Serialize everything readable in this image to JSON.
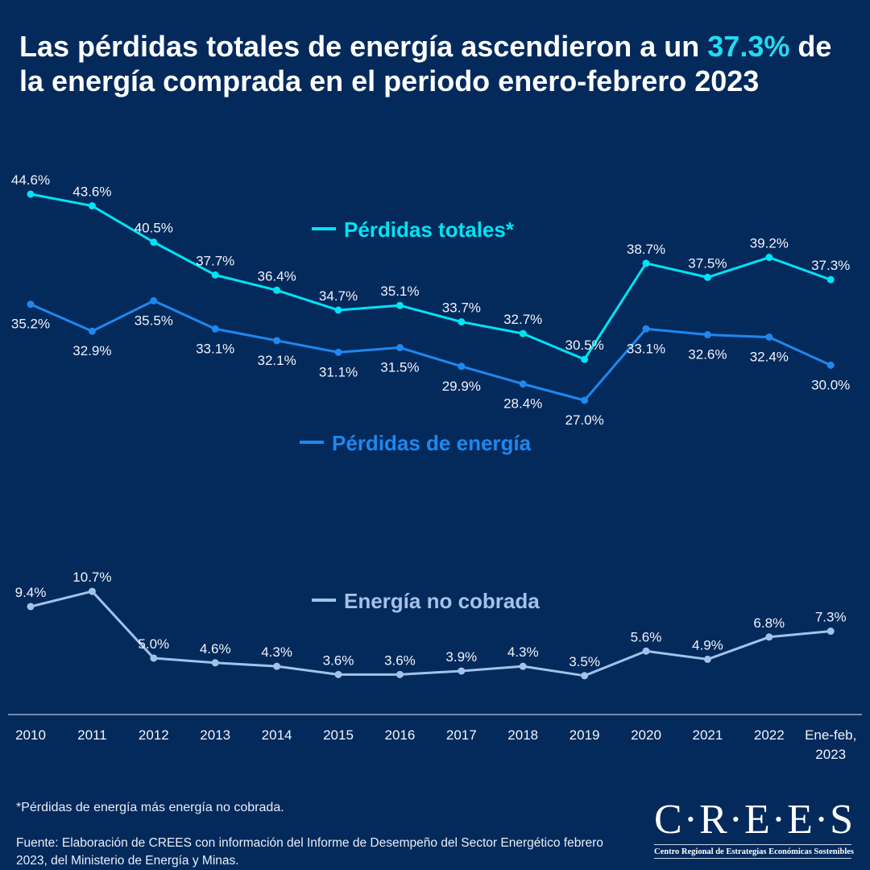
{
  "title": {
    "part1": "Las pérdidas totales de energía ascendieron a un ",
    "highlight": "37.3%",
    "part2": " de la energía comprada en el periodo enero-febrero 2023"
  },
  "chart_data": {
    "type": "line",
    "categories": [
      "2010",
      "2011",
      "2012",
      "2013",
      "2014",
      "2015",
      "2016",
      "2017",
      "2018",
      "2019",
      "2020",
      "2021",
      "2022",
      "Ene-feb, 2023"
    ],
    "category_lines": [
      [
        "2010"
      ],
      [
        "2011"
      ],
      [
        "2012"
      ],
      [
        "2013"
      ],
      [
        "2014"
      ],
      [
        "2015"
      ],
      [
        "2016"
      ],
      [
        "2017"
      ],
      [
        "2018"
      ],
      [
        "2019"
      ],
      [
        "2020"
      ],
      [
        "2021"
      ],
      [
        "2022"
      ],
      [
        "Ene-feb,",
        "2023"
      ]
    ],
    "grid": false,
    "series": [
      {
        "name": "Pérdidas totales*",
        "color": "#00e4f4",
        "values": [
          44.6,
          43.6,
          40.5,
          37.7,
          36.4,
          34.7,
          35.1,
          33.7,
          32.7,
          30.5,
          38.7,
          37.5,
          39.2,
          37.3
        ]
      },
      {
        "name": "Pérdidas de energía",
        "color": "#1f87ee",
        "values": [
          35.2,
          32.9,
          35.5,
          33.1,
          32.1,
          31.1,
          31.5,
          29.9,
          28.4,
          27.0,
          33.1,
          32.6,
          32.4,
          30.0
        ]
      },
      {
        "name": "Energía no cobrada",
        "color": "#a3c2ea",
        "values": [
          9.4,
          10.7,
          5.0,
          4.6,
          4.3,
          3.6,
          3.6,
          3.9,
          4.3,
          3.5,
          5.6,
          4.9,
          6.8,
          7.3
        ]
      }
    ],
    "value_suffix": "%",
    "legend": "inline"
  },
  "footnote": "*Pérdidas de energía más energía no cobrada.",
  "source": "Fuente: Elaboración de CREES con información del Informe de Desempeño del Sector Energético febrero 2023, del Ministerio de Energía y Minas.",
  "logo": {
    "name": "C·R·E·E·S",
    "subtitle": "Centro Regional de Estrategias Económicas Sostenibles"
  },
  "colors": {
    "background": "#042a5c",
    "highlight": "#22dcf0"
  }
}
